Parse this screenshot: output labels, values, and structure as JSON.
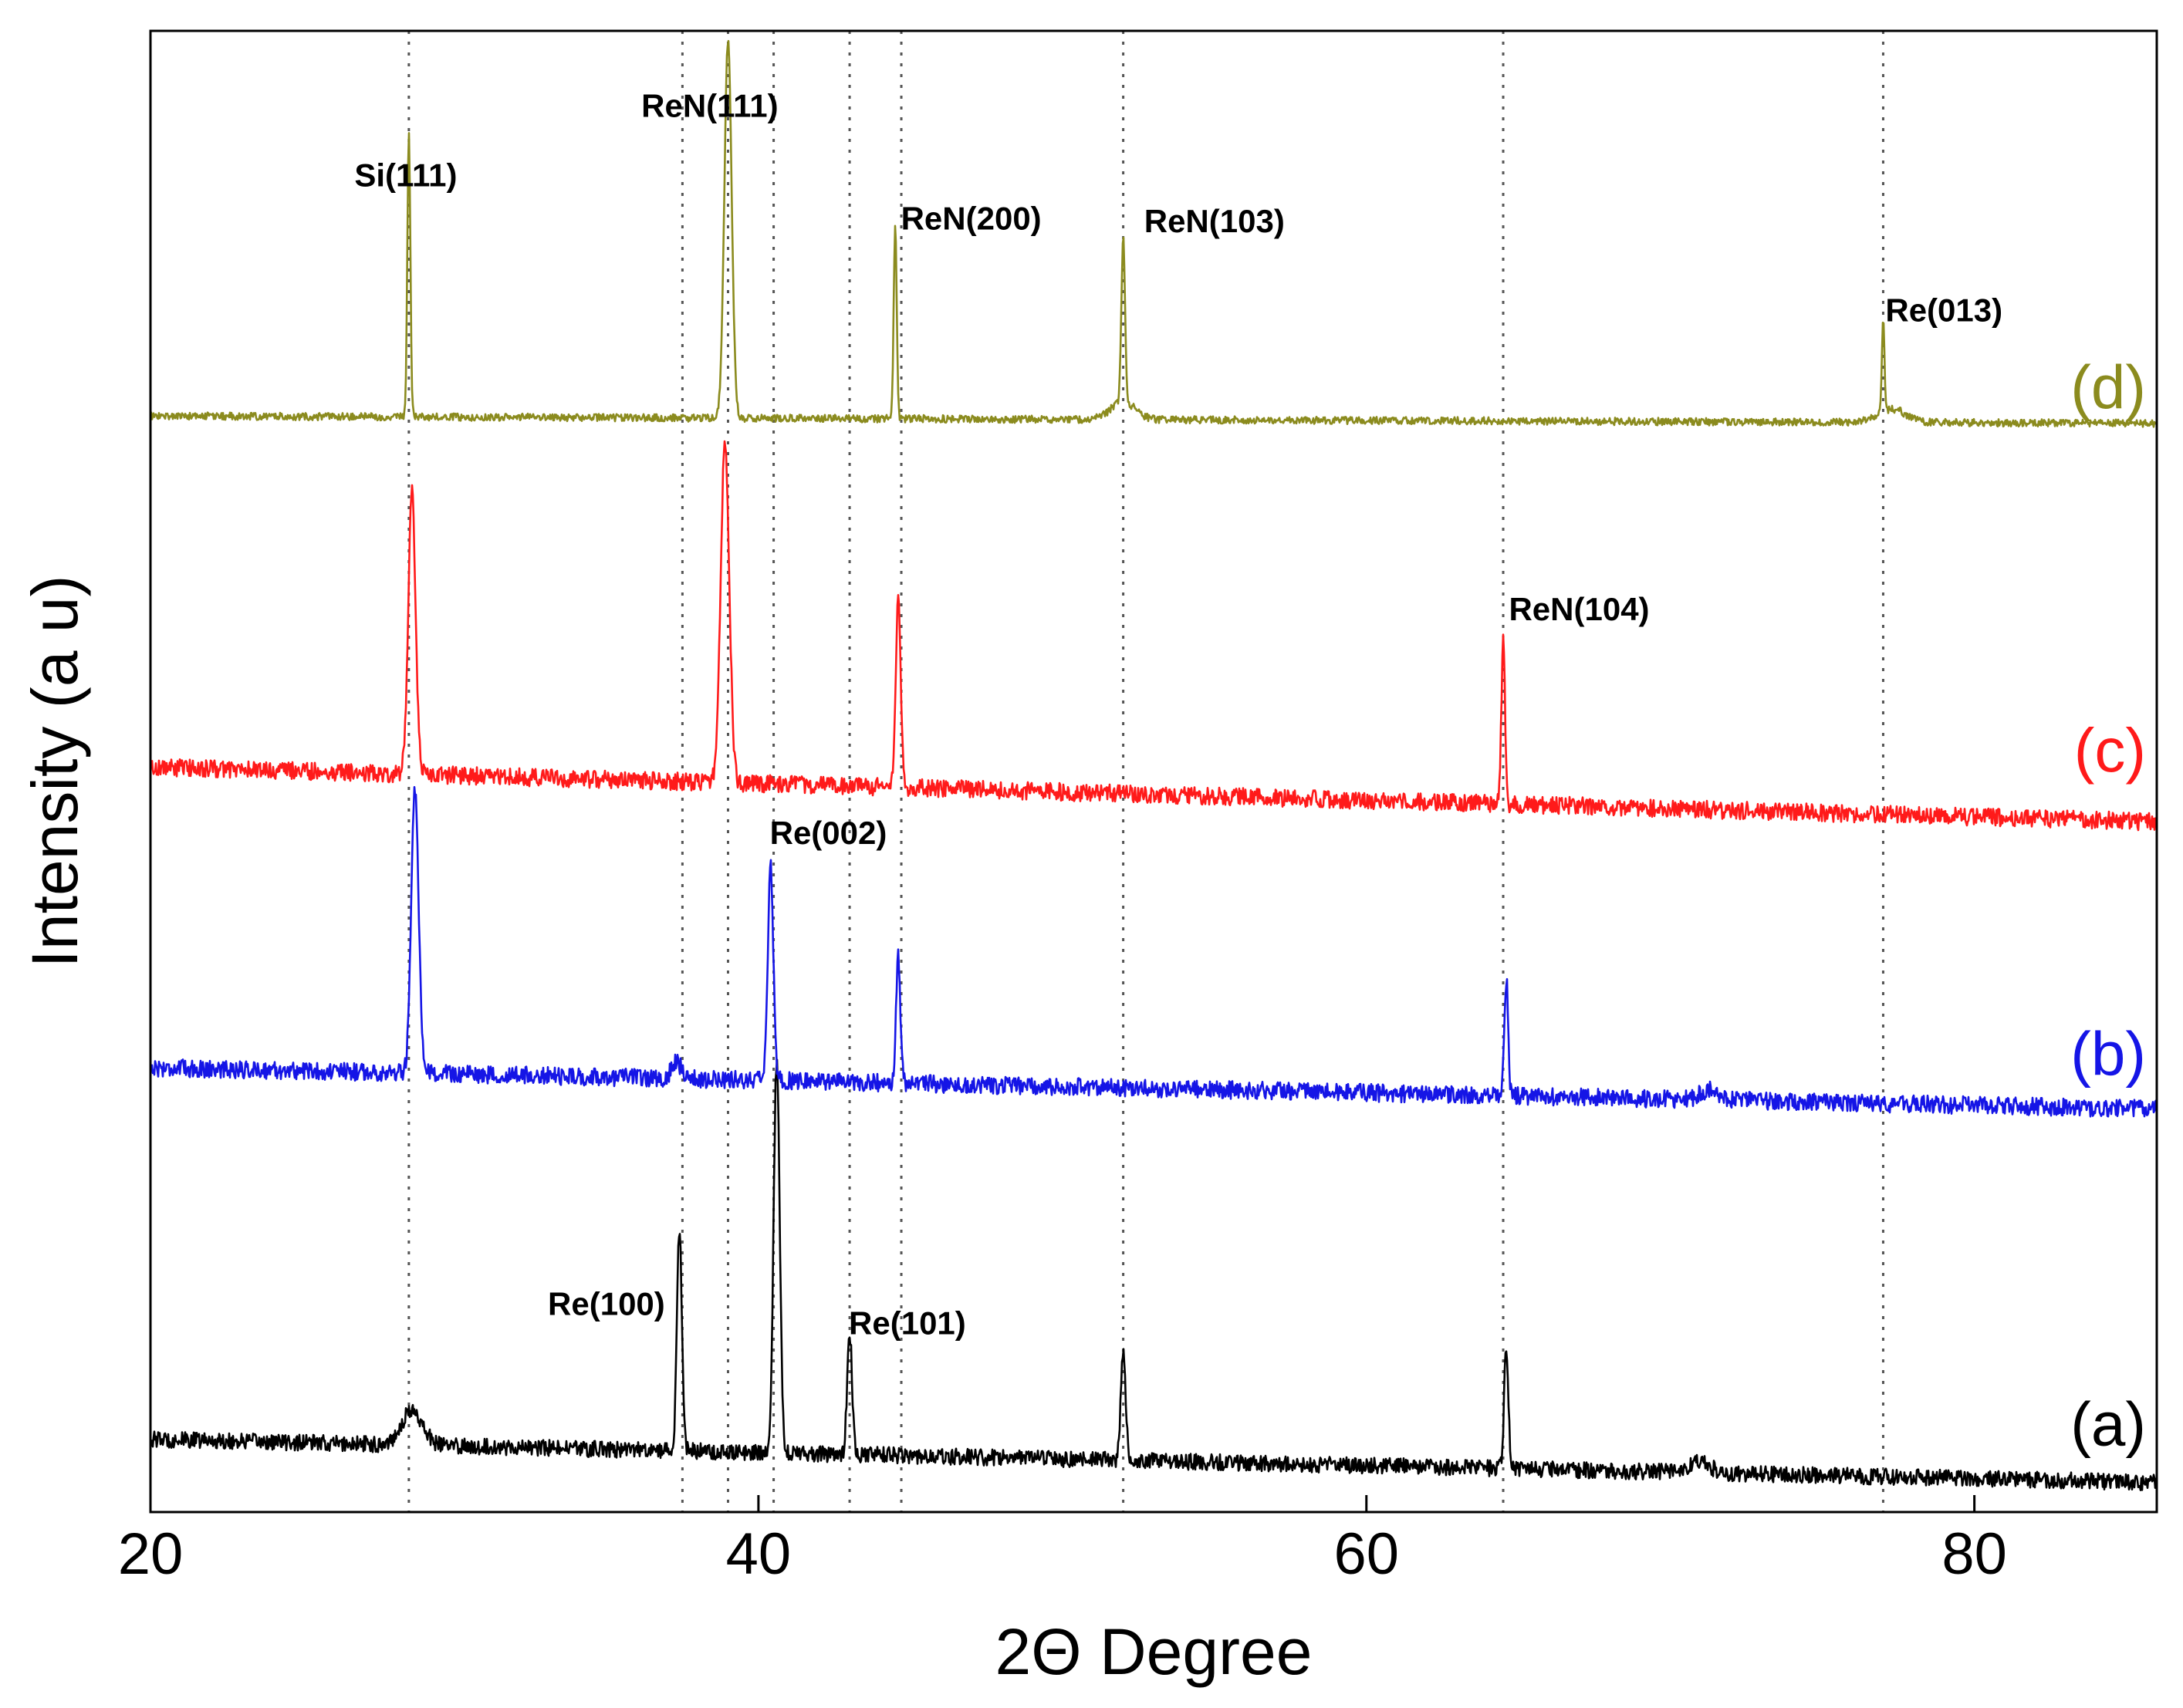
{
  "chart_data": {
    "type": "line",
    "title": "",
    "xlabel": "2Θ Degree",
    "ylabel": "Intensity (a u)",
    "xlim": [
      20,
      86
    ],
    "ylim": [
      0,
      100
    ],
    "xticks": [
      20,
      40,
      60,
      80
    ],
    "xtick_labels": [
      "20",
      "40",
      "60",
      "80"
    ],
    "grid": false,
    "reference_lines": [
      28.5,
      37.5,
      39.0,
      40.5,
      43.0,
      44.7,
      52.0,
      64.5,
      77.0
    ],
    "series": [
      {
        "name": "(a)",
        "color": "#000000",
        "baseline_start": 4.9,
        "baseline_end": 2.0,
        "noise": 0.55,
        "peaks": [
          {
            "x": 28.6,
            "h": 2.3,
            "w": 0.35
          },
          {
            "x": 37.4,
            "h": 15.0,
            "w": 0.08
          },
          {
            "x": 40.6,
            "h": 26.5,
            "w": 0.1
          },
          {
            "x": 43.0,
            "h": 8.3,
            "w": 0.08
          },
          {
            "x": 52.0,
            "h": 7.2,
            "w": 0.08
          },
          {
            "x": 64.6,
            "h": 8.0,
            "w": 0.07
          },
          {
            "x": 71.0,
            "h": 0.8,
            "w": 0.3
          }
        ]
      },
      {
        "name": "(b)",
        "color": "#1515e6",
        "baseline_start": 30.0,
        "baseline_end": 27.2,
        "noise": 0.6,
        "peaks": [
          {
            "x": 28.7,
            "h": 19.0,
            "w": 0.12
          },
          {
            "x": 37.3,
            "h": 1.2,
            "w": 0.15
          },
          {
            "x": 40.4,
            "h": 14.5,
            "w": 0.09
          },
          {
            "x": 44.6,
            "h": 8.5,
            "w": 0.07
          },
          {
            "x": 64.6,
            "h": 8.0,
            "w": 0.06
          },
          {
            "x": 71.3,
            "h": 0.7,
            "w": 0.3
          }
        ]
      },
      {
        "name": "(c)",
        "color": "#ff1a1a",
        "baseline_start": 50.3,
        "baseline_end": 46.6,
        "noise": 0.6,
        "peaks": [
          {
            "x": 28.6,
            "h": 19.0,
            "w": 0.12
          },
          {
            "x": 38.9,
            "h": 23.0,
            "w": 0.14
          },
          {
            "x": 44.6,
            "h": 13.0,
            "w": 0.08
          },
          {
            "x": 64.5,
            "h": 11.0,
            "w": 0.06
          }
        ]
      },
      {
        "name": "(d)",
        "color": "#8b8b1e",
        "baseline_start": 74.0,
        "baseline_end": 73.5,
        "noise": 0.25,
        "peaks": [
          {
            "x": 28.5,
            "h": 19.0,
            "w": 0.05
          },
          {
            "x": 39.0,
            "h": 25.5,
            "w": 0.12
          },
          {
            "x": 44.5,
            "h": 13.0,
            "w": 0.05
          },
          {
            "x": 52.0,
            "h": 11.0,
            "w": 0.06
          },
          {
            "x": 52.0,
            "h": 1.2,
            "w": 0.4
          },
          {
            "x": 77.0,
            "h": 6.3,
            "w": 0.04
          },
          {
            "x": 77.3,
            "h": 0.9,
            "w": 0.45
          }
        ]
      }
    ],
    "annotations": [
      {
        "text": "Si(111)",
        "x": 28.4,
        "y": 89.5
      },
      {
        "text": "ReN(111)",
        "x": 38.4,
        "y": 94.2
      },
      {
        "text": "ReN(200)",
        "x": 47.0,
        "y": 86.6
      },
      {
        "text": "ReN(103)",
        "x": 55.0,
        "y": 86.4
      },
      {
        "text": "Re(013)",
        "x": 79.0,
        "y": 80.4
      },
      {
        "text": "ReN(104)",
        "x": 67.0,
        "y": 60.2
      },
      {
        "text": "Re(002)",
        "x": 42.3,
        "y": 45.1
      },
      {
        "text": "Re(100)",
        "x": 35.0,
        "y": 13.3
      },
      {
        "text": "Re(101)",
        "x": 44.9,
        "y": 12.0
      }
    ],
    "series_labels": [
      {
        "text": "(d)",
        "color": "#8b8b1e",
        "y": 74.5
      },
      {
        "text": "(c)",
        "color": "#ff1a1a",
        "y": 50.0
      },
      {
        "text": "(b)",
        "color": "#1515e6",
        "y": 29.5
      },
      {
        "text": "(a)",
        "color": "#000000",
        "y": 4.5
      }
    ]
  }
}
